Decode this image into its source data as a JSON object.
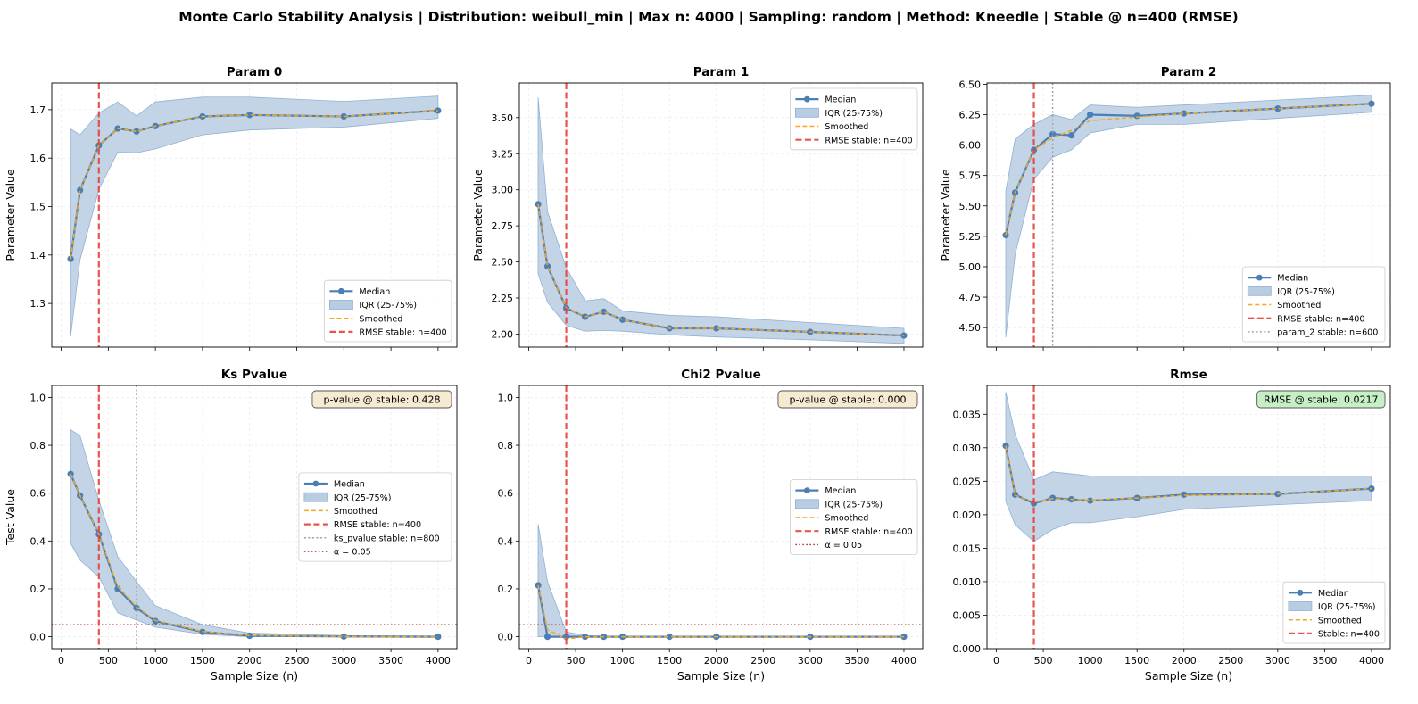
{
  "suptitle": "Monte Carlo Stability Analysis | Distribution: weibull_min | Max n: 4000 | Sampling: random | Method: Kneedle | Stable @ n=400 (RMSE)",
  "colors": {
    "median": "#4a7fb5",
    "iqr_fill": "#b9cde2",
    "iqr_edge": "#8fb1d3",
    "smoothed": "#f5a623",
    "stable": "#e8413b",
    "param_stable": "#a0a0a0",
    "alpha": "#a0281e",
    "pvalue_box": "#f7ead2",
    "rmse_box": "#c6efc6"
  },
  "chart_data": [
    {
      "type": "line",
      "title": "Param 0",
      "ylabel": "Parameter Value",
      "xlabel": "",
      "xlim": [
        -100,
        4200
      ],
      "ylim": [
        1.21,
        1.755
      ],
      "yticks": [
        1.3,
        1.4,
        1.5,
        1.6,
        1.7
      ],
      "ytick_labels": [
        "1.3",
        "1.4",
        "1.5",
        "1.6",
        "1.7"
      ],
      "x": [
        100,
        200,
        400,
        600,
        800,
        1000,
        1500,
        2000,
        3000,
        4000
      ],
      "median": [
        1.392,
        1.534,
        1.626,
        1.661,
        1.655,
        1.666,
        1.686,
        1.689,
        1.686,
        1.698
      ],
      "iqr_low": [
        1.232,
        1.39,
        1.535,
        1.612,
        1.611,
        1.619,
        1.648,
        1.658,
        1.664,
        1.682
      ],
      "iqr_high": [
        1.66,
        1.648,
        1.693,
        1.716,
        1.687,
        1.716,
        1.726,
        1.726,
        1.717,
        1.728
      ],
      "smoothed": [
        1.392,
        1.534,
        1.626,
        1.661,
        1.655,
        1.666,
        1.686,
        1.689,
        1.686,
        1.698
      ],
      "vlines": [
        {
          "x": 400,
          "style": "stable",
          "label": "RMSE stable: n=400"
        }
      ],
      "hlines": [],
      "legend": {
        "loc": "lower-right",
        "entries": [
          {
            "key": "median",
            "label": "Median"
          },
          {
            "key": "iqr",
            "label": "IQR (25-75%)"
          },
          {
            "key": "smoothed",
            "label": "Smoothed"
          },
          {
            "key": "stable",
            "label": "RMSE stable: n=400"
          }
        ]
      },
      "annotation": null
    },
    {
      "type": "line",
      "title": "Param 1",
      "ylabel": "Parameter Value",
      "xlabel": "",
      "xlim": [
        -100,
        4200
      ],
      "ylim": [
        1.91,
        3.74
      ],
      "yticks": [
        2.0,
        2.25,
        2.5,
        2.75,
        3.0,
        3.25,
        3.5
      ],
      "ytick_labels": [
        "2.00",
        "2.25",
        "2.50",
        "2.75",
        "3.00",
        "3.25",
        "3.50"
      ],
      "x": [
        100,
        200,
        400,
        600,
        800,
        1000,
        1500,
        2000,
        3000,
        4000
      ],
      "median": [
        2.9,
        2.47,
        2.18,
        2.12,
        2.155,
        2.1,
        2.04,
        2.04,
        2.015,
        1.99
      ],
      "iqr_low": [
        2.42,
        2.22,
        2.06,
        2.02,
        2.025,
        2.02,
        1.995,
        1.98,
        1.96,
        1.935
      ],
      "iqr_high": [
        3.64,
        2.85,
        2.46,
        2.23,
        2.245,
        2.16,
        2.13,
        2.12,
        2.08,
        2.04
      ],
      "smoothed": [
        2.9,
        2.47,
        2.18,
        2.12,
        2.155,
        2.1,
        2.04,
        2.04,
        2.015,
        1.99
      ],
      "vlines": [
        {
          "x": 400,
          "style": "stable",
          "label": "RMSE stable: n=400"
        }
      ],
      "hlines": [],
      "legend": {
        "loc": "upper-right",
        "entries": [
          {
            "key": "median",
            "label": "Median"
          },
          {
            "key": "iqr",
            "label": "IQR (25-75%)"
          },
          {
            "key": "smoothed",
            "label": "Smoothed"
          },
          {
            "key": "stable",
            "label": "RMSE stable: n=400"
          }
        ]
      },
      "annotation": null
    },
    {
      "type": "line",
      "title": "Param 2",
      "ylabel": "Parameter Value",
      "xlabel": "",
      "xlim": [
        -100,
        4200
      ],
      "ylim": [
        4.34,
        6.51
      ],
      "yticks": [
        4.5,
        4.75,
        5.0,
        5.25,
        5.5,
        5.75,
        6.0,
        6.25,
        6.5
      ],
      "ytick_labels": [
        "4.50",
        "4.75",
        "5.00",
        "5.25",
        "5.50",
        "5.75",
        "6.00",
        "6.25",
        "6.50"
      ],
      "x": [
        100,
        200,
        400,
        600,
        800,
        1000,
        1500,
        2000,
        3000,
        4000
      ],
      "median": [
        5.26,
        5.61,
        5.96,
        6.09,
        6.08,
        6.25,
        6.24,
        6.26,
        6.3,
        6.34
      ],
      "iqr_low": [
        4.42,
        5.1,
        5.72,
        5.9,
        5.96,
        6.1,
        6.17,
        6.17,
        6.22,
        6.27
      ],
      "iqr_high": [
        5.62,
        6.05,
        6.17,
        6.25,
        6.21,
        6.33,
        6.31,
        6.33,
        6.37,
        6.41
      ],
      "smoothed": [
        5.26,
        5.61,
        5.96,
        6.06,
        6.12,
        6.2,
        6.23,
        6.26,
        6.3,
        6.34
      ],
      "vlines": [
        {
          "x": 400,
          "style": "stable",
          "label": "RMSE stable: n=400"
        },
        {
          "x": 600,
          "style": "param_stable",
          "label": "param_2 stable: n=600"
        }
      ],
      "hlines": [],
      "legend": {
        "loc": "lower-right",
        "entries": [
          {
            "key": "median",
            "label": "Median"
          },
          {
            "key": "iqr",
            "label": "IQR (25-75%)"
          },
          {
            "key": "smoothed",
            "label": "Smoothed"
          },
          {
            "key": "stable",
            "label": "RMSE stable: n=400"
          },
          {
            "key": "param_stable",
            "label": "param_2 stable: n=600"
          }
        ]
      },
      "annotation": null
    },
    {
      "type": "line",
      "title": "Ks Pvalue",
      "ylabel": "Test Value",
      "xlabel": "Sample Size (n)",
      "xlim": [
        -100,
        4200
      ],
      "ylim": [
        -0.05,
        1.05
      ],
      "yticks": [
        0.0,
        0.2,
        0.4,
        0.6,
        0.8,
        1.0
      ],
      "ytick_labels": [
        "0.0",
        "0.2",
        "0.4",
        "0.6",
        "0.8",
        "1.0"
      ],
      "x": [
        100,
        200,
        400,
        600,
        800,
        1000,
        1500,
        2000,
        3000,
        4000
      ],
      "median": [
        0.68,
        0.59,
        0.428,
        0.2,
        0.12,
        0.065,
        0.02,
        0.004,
        0.001,
        0.0
      ],
      "iqr_low": [
        0.39,
        0.32,
        0.25,
        0.1,
        0.07,
        0.04,
        0.01,
        0.0,
        0.0,
        0.0
      ],
      "iqr_high": [
        0.865,
        0.84,
        0.57,
        0.335,
        0.23,
        0.13,
        0.05,
        0.015,
        0.005,
        0.003
      ],
      "smoothed": [
        0.68,
        0.59,
        0.428,
        0.21,
        0.125,
        0.068,
        0.022,
        0.005,
        0.001,
        0.0
      ],
      "vlines": [
        {
          "x": 400,
          "style": "stable",
          "label": "RMSE stable: n=400"
        },
        {
          "x": 800,
          "style": "param_stable",
          "label": "ks_pvalue stable: n=800"
        }
      ],
      "hlines": [
        {
          "y": 0.05,
          "style": "alpha",
          "label": "α = 0.05"
        }
      ],
      "legend": {
        "loc": "center-right",
        "entries": [
          {
            "key": "median",
            "label": "Median"
          },
          {
            "key": "iqr",
            "label": "IQR (25-75%)"
          },
          {
            "key": "smoothed",
            "label": "Smoothed"
          },
          {
            "key": "stable",
            "label": "RMSE stable: n=400"
          },
          {
            "key": "param_stable",
            "label": "ks_pvalue stable: n=800"
          },
          {
            "key": "alpha",
            "label": "α = 0.05"
          }
        ]
      },
      "annotation": {
        "text": "p-value @ stable: 0.428",
        "box": "pvalue_box"
      }
    },
    {
      "type": "line",
      "title": "Chi2 Pvalue",
      "ylabel": "",
      "xlabel": "Sample Size (n)",
      "xlim": [
        -100,
        4200
      ],
      "ylim": [
        -0.05,
        1.05
      ],
      "yticks": [
        0.0,
        0.2,
        0.4,
        0.6,
        0.8,
        1.0
      ],
      "ytick_labels": [
        "0.0",
        "0.2",
        "0.4",
        "0.6",
        "0.8",
        "1.0"
      ],
      "x": [
        100,
        200,
        400,
        600,
        800,
        1000,
        1500,
        2000,
        3000,
        4000
      ],
      "median": [
        0.215,
        0.0,
        0.0,
        0.0,
        0.0,
        0.0,
        0.0,
        0.0,
        0.0,
        0.0
      ],
      "iqr_low": [
        0.0,
        0.0,
        0.0,
        0.0,
        0.0,
        0.0,
        0.0,
        0.0,
        0.0,
        0.0
      ],
      "iqr_high": [
        0.47,
        0.23,
        0.02,
        0.005,
        0.003,
        0.002,
        0.001,
        0.0,
        0.0,
        0.0
      ],
      "smoothed": [
        0.215,
        0.03,
        -0.01,
        0.0,
        0.0,
        0.0,
        0.0,
        0.0,
        0.0,
        0.0
      ],
      "vlines": [
        {
          "x": 400,
          "style": "stable",
          "label": "RMSE stable: n=400"
        }
      ],
      "hlines": [
        {
          "y": 0.05,
          "style": "alpha",
          "label": "α = 0.05"
        }
      ],
      "legend": {
        "loc": "center-right",
        "entries": [
          {
            "key": "median",
            "label": "Median"
          },
          {
            "key": "iqr",
            "label": "IQR (25-75%)"
          },
          {
            "key": "smoothed",
            "label": "Smoothed"
          },
          {
            "key": "stable",
            "label": "RMSE stable: n=400"
          },
          {
            "key": "alpha",
            "label": "α = 0.05"
          }
        ]
      },
      "annotation": {
        "text": "p-value @ stable: 0.000",
        "box": "pvalue_box"
      }
    },
    {
      "type": "line",
      "title": "Rmse",
      "ylabel": "",
      "xlabel": "Sample Size (n)",
      "xlim": [
        -100,
        4200
      ],
      "ylim": [
        0.0,
        0.0393
      ],
      "yticks": [
        0.0,
        0.005,
        0.01,
        0.015,
        0.02,
        0.025,
        0.03,
        0.035
      ],
      "ytick_labels": [
        "0.000",
        "0.005",
        "0.010",
        "0.015",
        "0.020",
        "0.025",
        "0.030",
        "0.035"
      ],
      "x": [
        100,
        200,
        400,
        600,
        800,
        1000,
        1500,
        2000,
        3000,
        4000
      ],
      "median": [
        0.0303,
        0.023,
        0.0217,
        0.0225,
        0.0223,
        0.0221,
        0.0225,
        0.023,
        0.0231,
        0.0239
      ],
      "iqr_low": [
        0.022,
        0.0185,
        0.016,
        0.0178,
        0.0188,
        0.0188,
        0.0197,
        0.0208,
        0.0215,
        0.0221
      ],
      "iqr_high": [
        0.0383,
        0.032,
        0.0252,
        0.0264,
        0.0261,
        0.0258,
        0.0258,
        0.0258,
        0.0258,
        0.0258
      ],
      "smoothed": [
        0.0303,
        0.0229,
        0.0219,
        0.0224,
        0.0223,
        0.0222,
        0.0225,
        0.0229,
        0.0231,
        0.0239
      ],
      "vlines": [
        {
          "x": 400,
          "style": "stable",
          "label": "Stable: n=400"
        }
      ],
      "hlines": [],
      "legend": {
        "loc": "lower-right",
        "entries": [
          {
            "key": "median",
            "label": "Median"
          },
          {
            "key": "iqr",
            "label": "IQR (25-75%)"
          },
          {
            "key": "smoothed",
            "label": "Smoothed"
          },
          {
            "key": "stable",
            "label": "Stable: n=400"
          }
        ]
      },
      "annotation": {
        "text": "RMSE @ stable: 0.0217",
        "box": "rmse_box"
      }
    }
  ],
  "xticks": [
    0,
    500,
    1000,
    1500,
    2000,
    2500,
    3000,
    3500,
    4000
  ],
  "xtick_labels": [
    "0",
    "500",
    "1000",
    "1500",
    "2000",
    "2500",
    "3000",
    "3500",
    "4000"
  ]
}
